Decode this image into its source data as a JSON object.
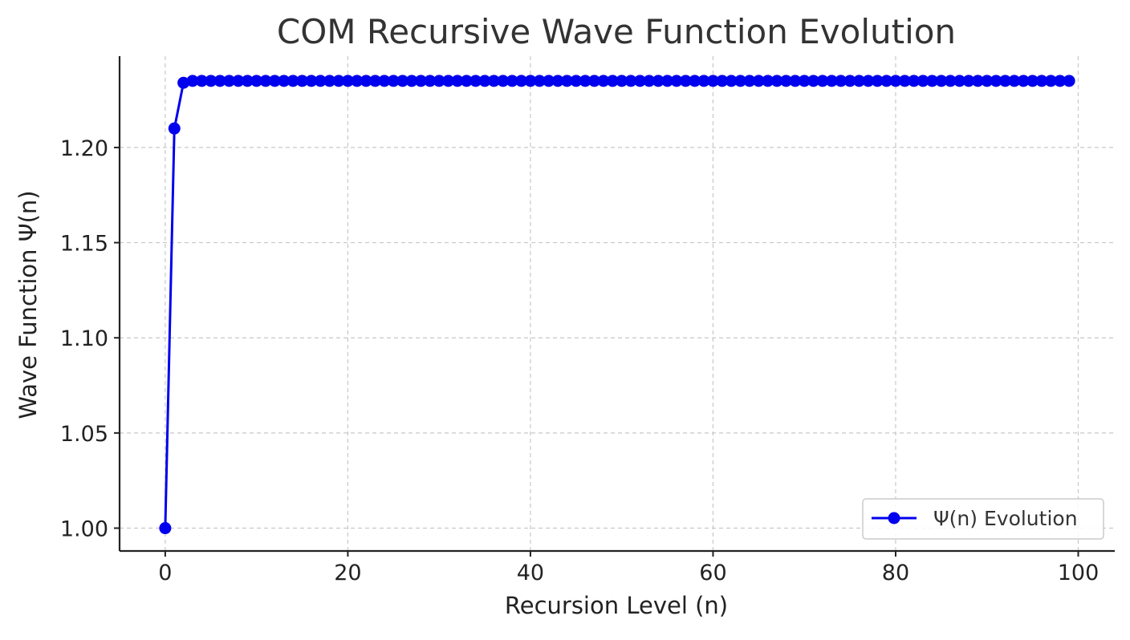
{
  "chart_data": {
    "type": "line",
    "title": "COM Recursive Wave Function Evolution",
    "xlabel": "Recursion Level (n)",
    "ylabel": "Wave Function Ψ(n)",
    "xlim": [
      -5,
      104
    ],
    "ylim": [
      0.988,
      1.248
    ],
    "xticks": [
      0,
      20,
      40,
      60,
      80,
      100
    ],
    "xtick_labels": [
      "0",
      "20",
      "40",
      "60",
      "80",
      "100"
    ],
    "yticks": [
      1.0,
      1.05,
      1.1,
      1.15,
      1.2
    ],
    "ytick_labels": [
      "1.00",
      "1.05",
      "1.10",
      "1.15",
      "1.20"
    ],
    "grid": true,
    "legend_position": "lower-right",
    "series": [
      {
        "name": "Ψ(n) Evolution",
        "color": "#0000ee",
        "marker": "circle",
        "x": [
          0,
          1,
          2,
          3,
          4,
          5,
          6,
          7,
          8,
          9,
          10,
          11,
          12,
          13,
          14,
          15,
          16,
          17,
          18,
          19,
          20,
          21,
          22,
          23,
          24,
          25,
          26,
          27,
          28,
          29,
          30,
          31,
          32,
          33,
          34,
          35,
          36,
          37,
          38,
          39,
          40,
          41,
          42,
          43,
          44,
          45,
          46,
          47,
          48,
          49,
          50,
          51,
          52,
          53,
          54,
          55,
          56,
          57,
          58,
          59,
          60,
          61,
          62,
          63,
          64,
          65,
          66,
          67,
          68,
          69,
          70,
          71,
          72,
          73,
          74,
          75,
          76,
          77,
          78,
          79,
          80,
          81,
          82,
          83,
          84,
          85,
          86,
          87,
          88,
          89,
          90,
          91,
          92,
          93,
          94,
          95,
          96,
          97,
          98,
          99
        ],
        "y": [
          1.0,
          1.21,
          1.234,
          1.235,
          1.235,
          1.235,
          1.235,
          1.235,
          1.235,
          1.235,
          1.235,
          1.235,
          1.235,
          1.235,
          1.235,
          1.235,
          1.235,
          1.235,
          1.235,
          1.235,
          1.235,
          1.235,
          1.235,
          1.235,
          1.235,
          1.235,
          1.235,
          1.235,
          1.235,
          1.235,
          1.235,
          1.235,
          1.235,
          1.235,
          1.235,
          1.235,
          1.235,
          1.235,
          1.235,
          1.235,
          1.235,
          1.235,
          1.235,
          1.235,
          1.235,
          1.235,
          1.235,
          1.235,
          1.235,
          1.235,
          1.235,
          1.235,
          1.235,
          1.235,
          1.235,
          1.235,
          1.235,
          1.235,
          1.235,
          1.235,
          1.235,
          1.235,
          1.235,
          1.235,
          1.235,
          1.235,
          1.235,
          1.235,
          1.235,
          1.235,
          1.235,
          1.235,
          1.235,
          1.235,
          1.235,
          1.235,
          1.235,
          1.235,
          1.235,
          1.235,
          1.235,
          1.235,
          1.235,
          1.235,
          1.235,
          1.235,
          1.235,
          1.235,
          1.235,
          1.235,
          1.235,
          1.235,
          1.235,
          1.235,
          1.235,
          1.235,
          1.235,
          1.235,
          1.235,
          1.235
        ]
      }
    ]
  }
}
